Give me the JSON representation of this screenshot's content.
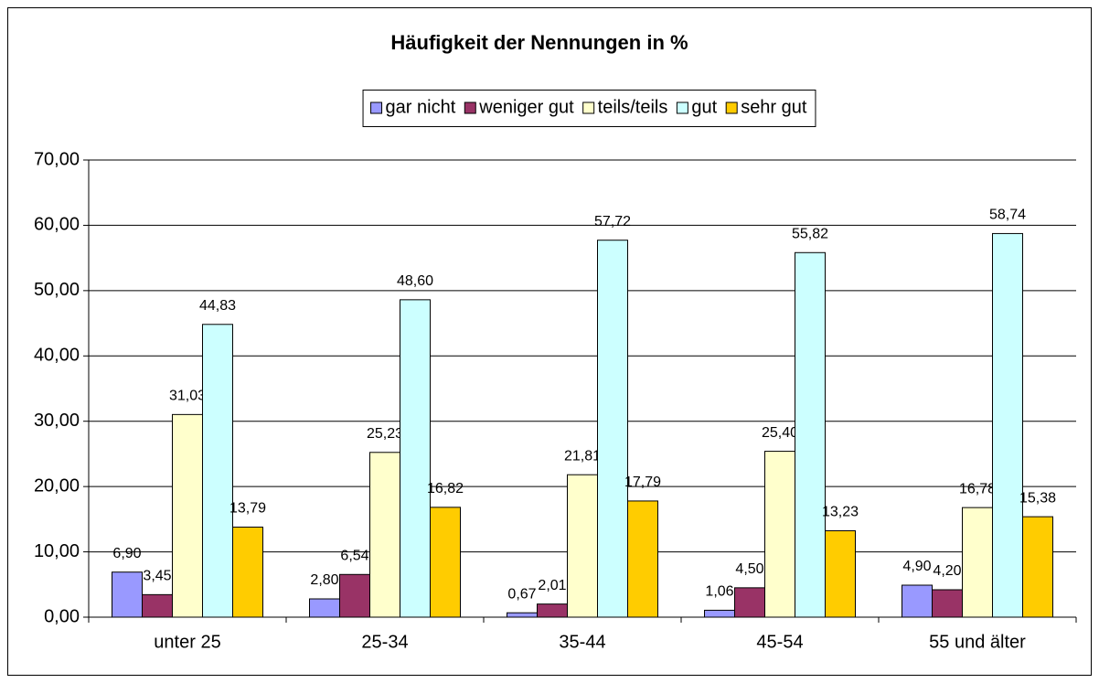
{
  "chart_data": {
    "type": "bar",
    "title": "Häufigkeit der Nennungen in %",
    "categories": [
      "unter 25",
      "25-34",
      "35-44",
      "45-54",
      "55 und älter"
    ],
    "series": [
      {
        "name": "gar nicht",
        "color": "#9999ff",
        "values": [
          6.9,
          2.8,
          0.67,
          1.06,
          4.9
        ],
        "value_labels": [
          "6,90",
          "2,80",
          "0,67",
          "1,06",
          "4,90"
        ]
      },
      {
        "name": "weniger gut",
        "color": "#993366",
        "values": [
          3.45,
          6.54,
          2.01,
          4.5,
          4.2
        ],
        "value_labels": [
          "3,45",
          "6,54",
          "2,01",
          "4,50",
          "4,20"
        ]
      },
      {
        "name": "teils/teils",
        "color": "#ffffcc",
        "values": [
          31.03,
          25.23,
          21.81,
          25.4,
          16.78
        ],
        "value_labels": [
          "31,03",
          "25,23",
          "21,81",
          "25,40",
          "16,78"
        ]
      },
      {
        "name": "gut",
        "color": "#ccffff",
        "values": [
          44.83,
          48.6,
          57.72,
          55.82,
          58.74
        ],
        "value_labels": [
          "44,83",
          "48,60",
          "57,72",
          "55,82",
          "58,74"
        ]
      },
      {
        "name": "sehr gut",
        "color": "#ffcc00",
        "values": [
          13.79,
          16.82,
          17.79,
          13.23,
          15.38
        ],
        "value_labels": [
          "13,79",
          "16,82",
          "17,79",
          "13,23",
          "15,38"
        ]
      }
    ],
    "ylim": [
      0,
      70
    ],
    "yticks": [
      {
        "value": 0,
        "label": "0,00"
      },
      {
        "value": 10,
        "label": "10,00"
      },
      {
        "value": 20,
        "label": "20,00"
      },
      {
        "value": 30,
        "label": "30,00"
      },
      {
        "value": 40,
        "label": "40,00"
      },
      {
        "value": 50,
        "label": "50,00"
      },
      {
        "value": 60,
        "label": "60,00"
      },
      {
        "value": 70,
        "label": "70,00"
      }
    ],
    "grid": true,
    "legend": "top"
  }
}
